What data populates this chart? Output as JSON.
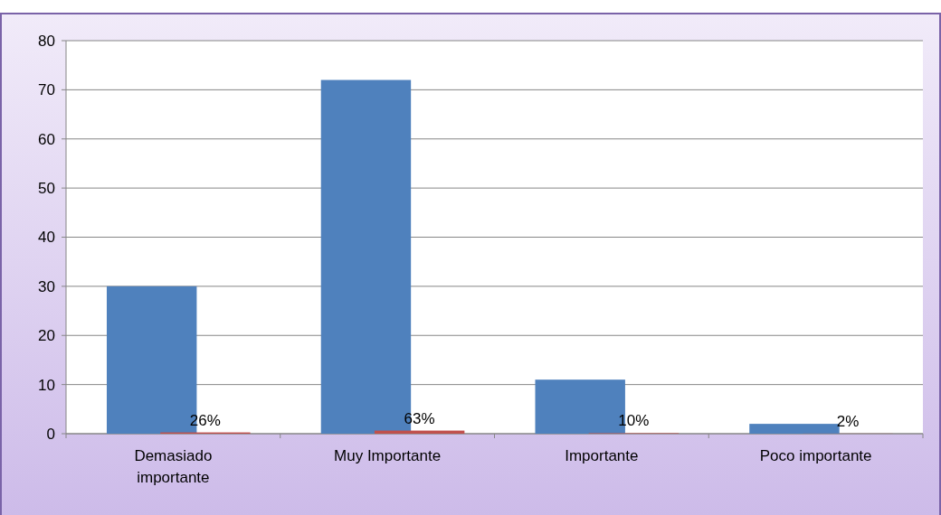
{
  "chart_data": {
    "type": "bar",
    "categories": [
      "Demasiado importante",
      "Muy Importante",
      "Importante",
      "Poco importante"
    ],
    "series": [
      {
        "color": "#4f81bd",
        "values": [
          30,
          72,
          11,
          2
        ]
      },
      {
        "color": "#c0504d",
        "values": [
          0.26,
          0.63,
          0.1,
          0.02
        ],
        "value_labels": [
          "26%",
          "63%",
          "10%",
          "2%"
        ]
      }
    ],
    "ylim": [
      0,
      80
    ],
    "yticks": [
      0,
      10,
      20,
      30,
      40,
      50,
      60,
      70,
      80
    ],
    "grid": "y"
  }
}
